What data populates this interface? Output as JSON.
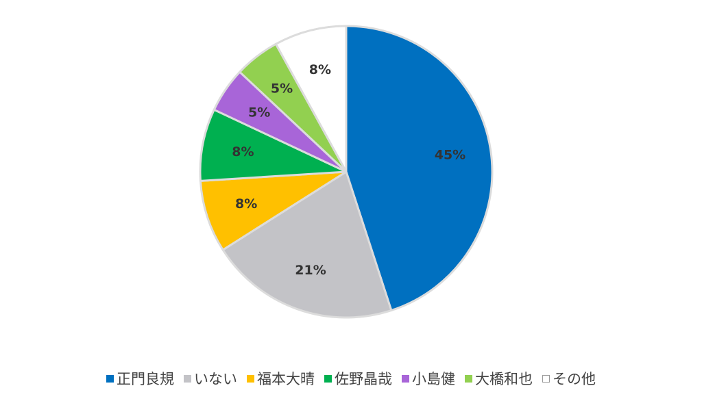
{
  "chart_data": {
    "type": "pie",
    "categories": [
      "正門良規",
      "いない",
      "福本大晴",
      "佐野晶哉",
      "小島健",
      "大橋和也",
      "その他"
    ],
    "values": [
      45,
      21,
      8,
      8,
      5,
      5,
      8
    ],
    "value_labels": [
      "45%",
      "21%",
      "8%",
      "8%",
      "5%",
      "5%",
      "8%"
    ],
    "colors": [
      "#0070c0",
      "#c3c3c7",
      "#ffc000",
      "#00b050",
      "#a865d8",
      "#92d050",
      "#ffffff"
    ]
  }
}
